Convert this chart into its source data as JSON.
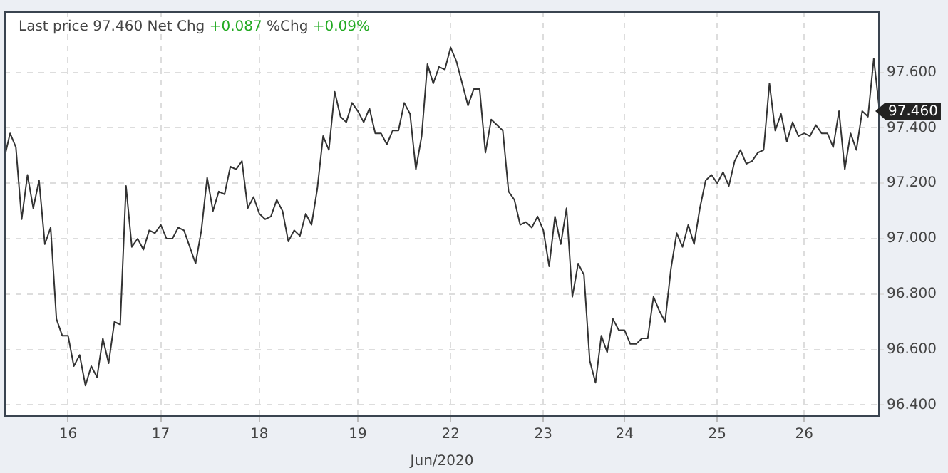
{
  "chart_data": {
    "type": "line",
    "title": "Last price 97.460 Net Chg +0.087 %Chg +0.09%",
    "xlabel": "Jun/2020",
    "categories": [
      null,
      null,
      null,
      null,
      null,
      null,
      null,
      null,
      null,
      null,
      null,
      "16",
      null,
      null,
      null,
      null,
      null,
      null,
      null,
      null,
      null,
      null,
      null,
      null,
      null,
      null,
      null,
      "17",
      null,
      null,
      null,
      null,
      null,
      null,
      null,
      null,
      null,
      null,
      null,
      null,
      null,
      null,
      null,
      null,
      "18",
      null,
      null,
      null,
      null,
      null,
      null,
      null,
      null,
      null,
      null,
      null,
      null,
      null,
      null,
      null,
      null,
      "19",
      null,
      null,
      null,
      null,
      null,
      null,
      null,
      null,
      null,
      null,
      null,
      null,
      null,
      null,
      null,
      "22",
      null,
      null,
      null,
      null,
      null,
      null,
      null,
      null,
      null,
      null,
      null,
      null,
      null,
      null,
      null,
      "23",
      null,
      null,
      null,
      null,
      null,
      null,
      null,
      null,
      null,
      null,
      null,
      null,
      null,
      "24",
      null,
      null,
      null,
      null,
      null,
      null,
      null,
      null,
      null,
      null,
      null,
      null,
      null,
      null,
      null,
      "25",
      null,
      null,
      null,
      null,
      null,
      null,
      null,
      null,
      null,
      null,
      null,
      null,
      null,
      null,
      "26",
      null,
      null,
      null,
      null,
      null,
      null,
      null,
      null,
      null,
      null,
      null,
      null,
      null
    ],
    "series": [
      {
        "color": "#333333",
        "values": [
          97.29,
          97.38,
          97.33,
          97.07,
          97.23,
          97.11,
          97.21,
          96.98,
          97.04,
          96.71,
          96.65,
          96.65,
          96.54,
          96.58,
          96.47,
          96.54,
          96.5,
          96.64,
          96.55,
          96.7,
          96.69,
          97.19,
          96.97,
          97.0,
          96.96,
          97.03,
          97.02,
          97.05,
          97.0,
          97.0,
          97.04,
          97.03,
          96.97,
          96.91,
          97.03,
          97.22,
          97.1,
          97.17,
          97.16,
          97.26,
          97.25,
          97.28,
          97.11,
          97.15,
          97.09,
          97.07,
          97.08,
          97.14,
          97.1,
          96.99,
          97.03,
          97.01,
          97.09,
          97.05,
          97.18,
          97.37,
          97.32,
          97.53,
          97.44,
          97.42,
          97.49,
          97.46,
          97.42,
          97.47,
          97.38,
          97.38,
          97.34,
          97.39,
          97.39,
          97.49,
          97.45,
          97.25,
          97.37,
          97.63,
          97.56,
          97.62,
          97.61,
          97.69,
          97.64,
          97.56,
          97.48,
          97.54,
          97.54,
          97.31,
          97.43,
          97.41,
          97.39,
          97.17,
          97.14,
          97.05,
          97.06,
          97.04,
          97.08,
          97.03,
          96.9,
          97.08,
          96.98,
          97.11,
          96.79,
          96.91,
          96.87,
          96.56,
          96.48,
          96.65,
          96.59,
          96.71,
          96.67,
          96.67,
          96.62,
          96.62,
          96.64,
          96.64,
          96.79,
          96.74,
          96.7,
          96.89,
          97.02,
          96.97,
          97.05,
          96.98,
          97.11,
          97.21,
          97.23,
          97.2,
          97.24,
          97.19,
          97.28,
          97.32,
          97.27,
          97.28,
          97.31,
          97.32,
          97.56,
          97.39,
          97.45,
          97.35,
          97.42,
          97.37,
          97.38,
          97.37,
          97.41,
          97.38,
          97.38,
          97.33,
          97.46,
          97.25,
          97.38,
          97.32,
          97.46,
          97.44,
          97.65,
          97.46
        ]
      }
    ],
    "ylim": [
      96.36,
      97.82
    ],
    "yticks": [
      {
        "value": 96.4,
        "label": "96.400"
      },
      {
        "value": 96.6,
        "label": "96.600"
      },
      {
        "value": 96.8,
        "label": "96.800"
      },
      {
        "value": 97.0,
        "label": "97.000"
      },
      {
        "value": 97.2,
        "label": "97.200"
      },
      {
        "value": 97.4,
        "label": "97.400"
      },
      {
        "value": 97.6,
        "label": "97.600"
      }
    ],
    "annotations": [
      "97.460"
    ],
    "grid": true,
    "legend": false,
    "marker": "none",
    "line_style": "solid"
  }
}
